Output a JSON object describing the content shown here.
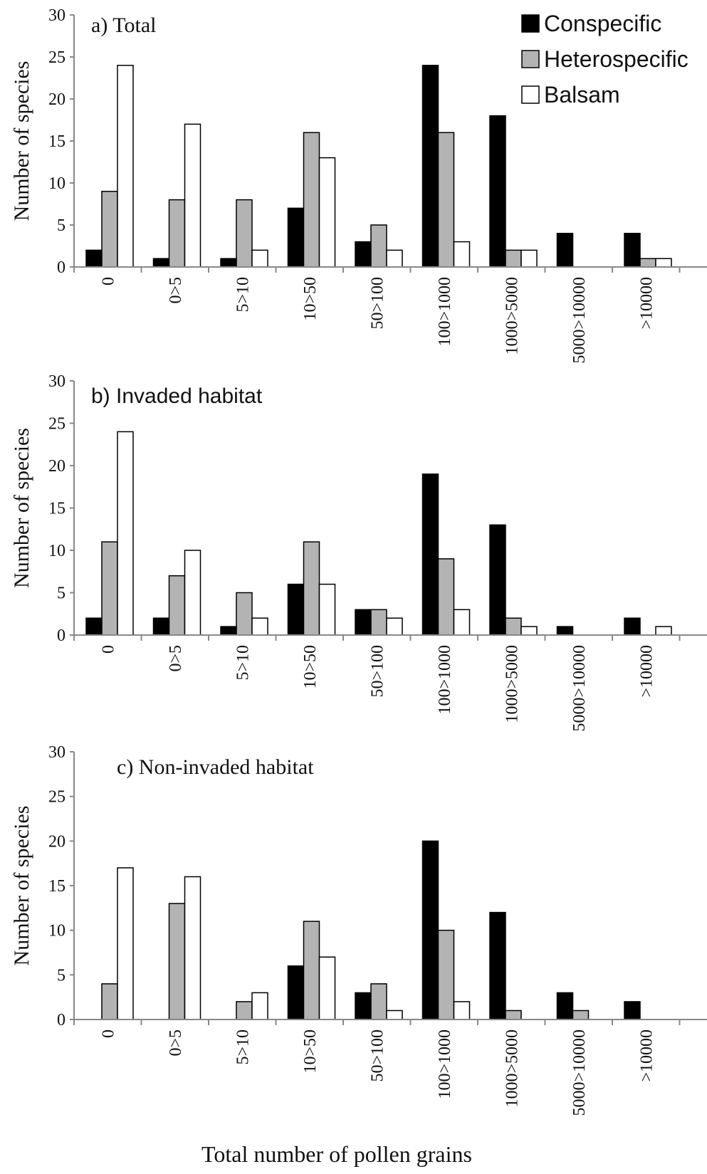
{
  "figure": {
    "xlabel": "Total number of pollen grains"
  },
  "chart_data": [
    {
      "type": "bar",
      "title": "a) Total",
      "ylabel": "Number of species",
      "xlabel": "",
      "ylim": [
        0,
        30
      ],
      "yticks": [
        0,
        5,
        10,
        15,
        20,
        25,
        30
      ],
      "categories": [
        "0",
        "0>5",
        "5>10",
        "10>50",
        "50>100",
        "100>1000",
        "1000>5000",
        "5000>10000",
        ">10000"
      ],
      "series": [
        {
          "name": "Conspecific",
          "color": "#000000",
          "values": [
            2,
            1,
            1,
            7,
            3,
            24,
            18,
            4,
            4
          ]
        },
        {
          "name": "Heterospecific",
          "color": "#b3b3b3",
          "values": [
            9,
            8,
            8,
            16,
            5,
            16,
            2,
            0,
            1
          ]
        },
        {
          "name": "Balsam",
          "color": "#ffffff",
          "values": [
            24,
            17,
            2,
            13,
            2,
            3,
            2,
            0,
            1
          ]
        }
      ],
      "legend": "top-right",
      "grid": false
    },
    {
      "type": "bar",
      "title": "b) Invaded habitat",
      "ylabel": "Number of species",
      "xlabel": "",
      "ylim": [
        0,
        30
      ],
      "yticks": [
        0,
        5,
        10,
        15,
        20,
        25,
        30
      ],
      "categories": [
        "0",
        "0>5",
        "5>10",
        "10>50",
        "50>100",
        "100>1000",
        "1000>5000",
        "5000>10000",
        ">10000"
      ],
      "series": [
        {
          "name": "Conspecific",
          "color": "#000000",
          "values": [
            2,
            2,
            1,
            6,
            3,
            19,
            13,
            1,
            2
          ]
        },
        {
          "name": "Heterospecific",
          "color": "#b3b3b3",
          "values": [
            11,
            7,
            5,
            11,
            3,
            9,
            2,
            0,
            0
          ]
        },
        {
          "name": "Balsam",
          "color": "#ffffff",
          "values": [
            24,
            10,
            2,
            6,
            2,
            3,
            1,
            0,
            1
          ]
        }
      ],
      "grid": false
    },
    {
      "type": "bar",
      "title": "c) Non-invaded habitat",
      "ylabel": "Number of species",
      "xlabel": "Total number of pollen grains",
      "ylim": [
        0,
        30
      ],
      "yticks": [
        0,
        5,
        10,
        15,
        20,
        25,
        30
      ],
      "categories": [
        "0",
        "0>5",
        "5>10",
        "10>50",
        "50>100",
        "100>1000",
        "1000>5000",
        "5000>10000",
        ">10000"
      ],
      "series": [
        {
          "name": "Conspecific",
          "color": "#000000",
          "values": [
            0,
            0,
            0,
            6,
            3,
            20,
            12,
            3,
            2
          ]
        },
        {
          "name": "Heterospecific",
          "color": "#b3b3b3",
          "values": [
            4,
            13,
            2,
            11,
            4,
            10,
            1,
            1,
            0
          ]
        },
        {
          "name": "Balsam",
          "color": "#ffffff",
          "values": [
            17,
            16,
            3,
            7,
            1,
            2,
            0,
            0,
            0
          ]
        }
      ],
      "grid": false
    }
  ]
}
